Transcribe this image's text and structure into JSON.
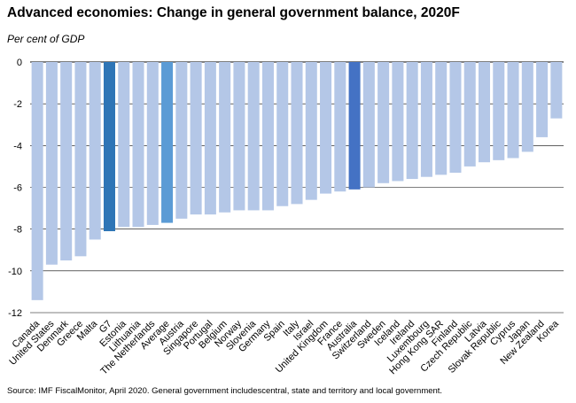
{
  "colors": {
    "bar": "#b4c7e7",
    "highlight_g7": "#2e75b6",
    "highlight_average": "#5b9bd5",
    "highlight_australia": "#4472c4",
    "grid": "#000000"
  },
  "chart_data": {
    "type": "bar",
    "title": "Advanced economies: Change in general government balance, 2020F",
    "ylabel": "Per cent of GDP",
    "xlabel": "",
    "ylim": [
      -12,
      0
    ],
    "yticks": [
      0,
      -2,
      -4,
      -6,
      -8,
      -10,
      -12
    ],
    "grid": true,
    "categories": [
      "Canada",
      "United States",
      "Denmark",
      "Greece",
      "Malta",
      "G7",
      "Estonia",
      "Lithuania",
      "The Netherlands",
      "Average",
      "Austria",
      "Singapore",
      "Portugal",
      "Belgium",
      "Norway",
      "Slovenia",
      "Germany",
      "Spain",
      "Italy",
      "Israel",
      "United Kingdom",
      "France",
      "Australia",
      "Switzerland",
      "Sweden",
      "Iceland",
      "Ireland",
      "Luxembourg",
      "Hong Kong SAR",
      "Finland",
      "Czech Republic",
      "Latvia",
      "Slovak Republic",
      "Cyprus",
      "Japan",
      "New Zealand",
      "Korea"
    ],
    "values": [
      -11.4,
      -9.7,
      -9.5,
      -9.3,
      -8.5,
      -8.1,
      -7.9,
      -7.9,
      -7.8,
      -7.7,
      -7.5,
      -7.3,
      -7.3,
      -7.2,
      -7.1,
      -7.1,
      -7.1,
      -6.9,
      -6.8,
      -6.6,
      -6.3,
      -6.2,
      -6.1,
      -6.0,
      -5.8,
      -5.7,
      -5.6,
      -5.5,
      -5.4,
      -5.3,
      -5.0,
      -4.8,
      -4.7,
      -4.6,
      -4.3,
      -3.6,
      -2.7
    ],
    "highlight": {
      "G7": "highlight_g7",
      "Average": "highlight_average",
      "Australia": "highlight_australia"
    }
  },
  "footer": {
    "source": "Source: IMF FiscalMonitor, April 2020.  General government includescentral, state and territory and local government."
  }
}
